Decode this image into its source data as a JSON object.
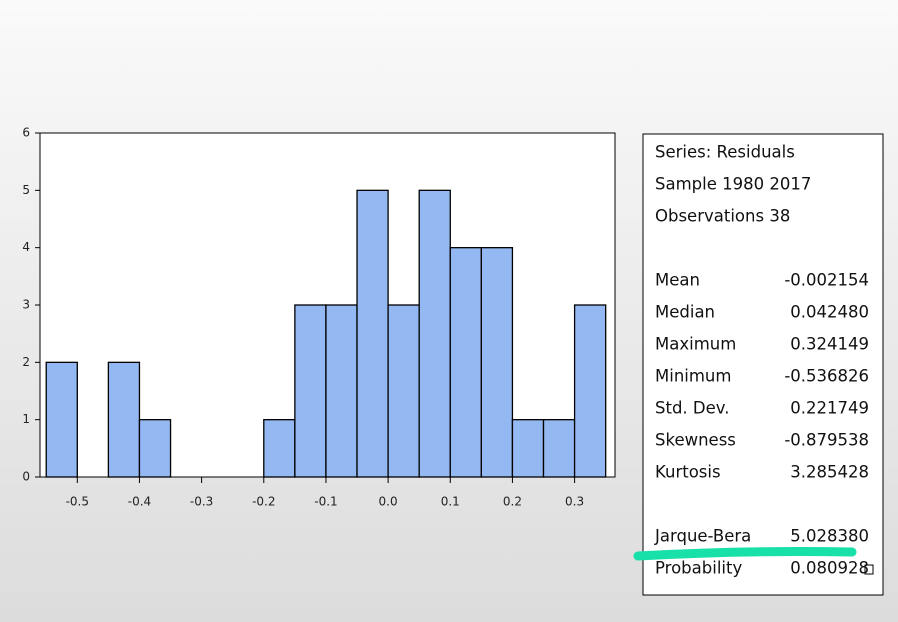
{
  "chart_data": {
    "type": "histogram",
    "bins": [
      -0.55,
      -0.5,
      -0.45,
      -0.4,
      -0.35,
      -0.3,
      -0.25,
      -0.2,
      -0.15,
      -0.1,
      -0.05,
      0,
      0.05,
      0.1,
      0.15,
      0.2,
      0.25,
      0.3,
      0.35
    ],
    "values": [
      2,
      0,
      2,
      1,
      0,
      0,
      0,
      1,
      3,
      3,
      5,
      3,
      5,
      4,
      4,
      1,
      1,
      3
    ],
    "color": "#94b8f2",
    "xlim": [
      -0.56,
      0.365
    ],
    "xticks": [
      -0.5,
      -0.4,
      -0.3,
      -0.2,
      -0.1,
      {
        "value": 0,
        "label": "0.0"
      },
      0.1,
      0.2,
      0.3
    ],
    "ylim": [
      0,
      6
    ],
    "yticks": [
      0,
      1,
      2,
      3,
      4,
      5,
      6
    ],
    "stats_header": [
      "Series: Residuals",
      "Sample 1980 2017",
      "Observations 38"
    ],
    "stats": [
      [
        "Mean",
        "-0.002154"
      ],
      [
        "Median",
        "0.042480"
      ],
      [
        "Maximum",
        "0.324149"
      ],
      [
        "Minimum",
        "-0.536826"
      ],
      [
        "Std. Dev.",
        "0.221749"
      ],
      [
        "Skewness",
        "-0.879538"
      ],
      [
        "Kurtosis",
        "3.285428"
      ]
    ],
    "tests": [
      [
        "Jarque-Bera",
        "5.028380"
      ],
      [
        "Probability",
        "0.080928"
      ]
    ]
  }
}
